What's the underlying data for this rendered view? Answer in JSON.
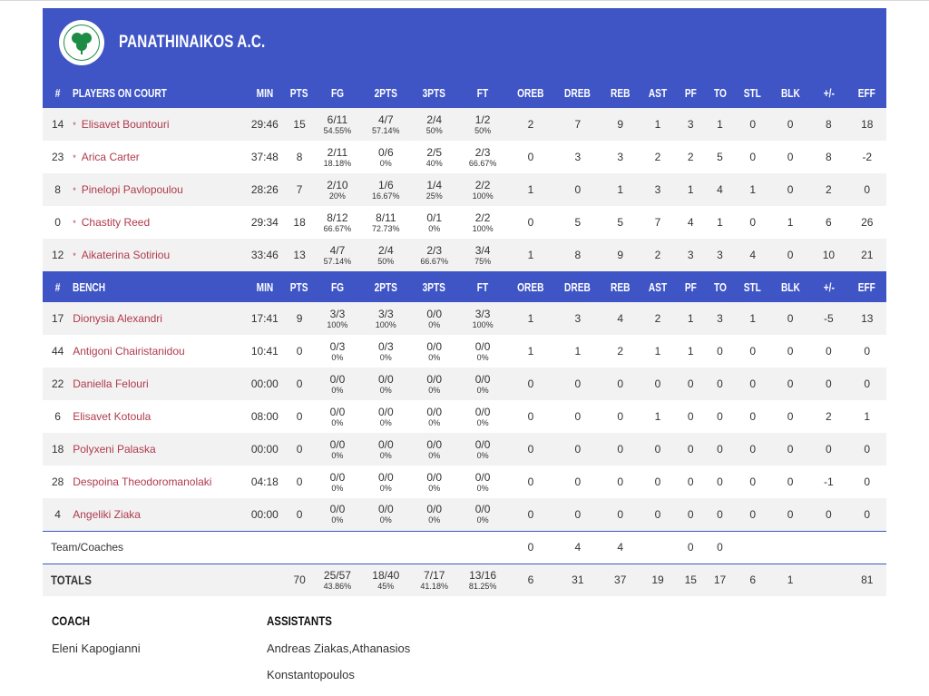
{
  "team": {
    "name": "PANATHINAIKOS A.C.",
    "logo_text": "ΠΑΝΑΘΗΝΑΪΚΟΣ Α.Ο.",
    "logo_year": "1908",
    "accent_color": "#3f55c6",
    "link_color": "#b03a4e"
  },
  "columns": [
    "#",
    "PLAYERS ON COURT",
    "MIN",
    "PTS",
    "FG",
    "2PTS",
    "3PTS",
    "FT",
    "OREB",
    "DREB",
    "REB",
    "AST",
    "PF",
    "TO",
    "STL",
    "BLK",
    "+/-",
    "EFF"
  ],
  "bench_columns": [
    "#",
    "BENCH",
    "MIN",
    "PTS",
    "FG",
    "2PTS",
    "3PTS",
    "FT",
    "OREB",
    "DREB",
    "REB",
    "AST",
    "PF",
    "TO",
    "STL",
    "BLK",
    "+/-",
    "EFF"
  ],
  "starters": [
    {
      "num": "14",
      "name": "Elisavet Bountouri",
      "min": "29:46",
      "pts": "15",
      "fg": "6/11",
      "fg_pct": "54.55%",
      "p2": "4/7",
      "p2_pct": "57.14%",
      "p3": "2/4",
      "p3_pct": "50%",
      "ft": "1/2",
      "ft_pct": "50%",
      "oreb": "2",
      "dreb": "7",
      "reb": "9",
      "ast": "1",
      "pf": "3",
      "to": "1",
      "stl": "0",
      "blk": "0",
      "pm": "8",
      "eff": "18"
    },
    {
      "num": "23",
      "name": "Arica Carter",
      "min": "37:48",
      "pts": "8",
      "fg": "2/11",
      "fg_pct": "18.18%",
      "p2": "0/6",
      "p2_pct": "0%",
      "p3": "2/5",
      "p3_pct": "40%",
      "ft": "2/3",
      "ft_pct": "66.67%",
      "oreb": "0",
      "dreb": "3",
      "reb": "3",
      "ast": "2",
      "pf": "2",
      "to": "5",
      "stl": "0",
      "blk": "0",
      "pm": "8",
      "eff": "-2"
    },
    {
      "num": "8",
      "name": "Pinelopi Pavlopoulou",
      "min": "28:26",
      "pts": "7",
      "fg": "2/10",
      "fg_pct": "20%",
      "p2": "1/6",
      "p2_pct": "16.67%",
      "p3": "1/4",
      "p3_pct": "25%",
      "ft": "2/2",
      "ft_pct": "100%",
      "oreb": "1",
      "dreb": "0",
      "reb": "1",
      "ast": "3",
      "pf": "1",
      "to": "4",
      "stl": "1",
      "blk": "0",
      "pm": "2",
      "eff": "0"
    },
    {
      "num": "0",
      "name": "Chastity Reed",
      "min": "29:34",
      "pts": "18",
      "fg": "8/12",
      "fg_pct": "66.67%",
      "p2": "8/11",
      "p2_pct": "72.73%",
      "p3": "0/1",
      "p3_pct": "0%",
      "ft": "2/2",
      "ft_pct": "100%",
      "oreb": "0",
      "dreb": "5",
      "reb": "5",
      "ast": "7",
      "pf": "4",
      "to": "1",
      "stl": "0",
      "blk": "1",
      "pm": "6",
      "eff": "26"
    },
    {
      "num": "12",
      "name": "Aikaterina Sotiriou",
      "min": "33:46",
      "pts": "13",
      "fg": "4/7",
      "fg_pct": "57.14%",
      "p2": "2/4",
      "p2_pct": "50%",
      "p3": "2/3",
      "p3_pct": "66.67%",
      "ft": "3/4",
      "ft_pct": "75%",
      "oreb": "1",
      "dreb": "8",
      "reb": "9",
      "ast": "2",
      "pf": "3",
      "to": "3",
      "stl": "4",
      "blk": "0",
      "pm": "10",
      "eff": "21"
    }
  ],
  "bench": [
    {
      "num": "17",
      "name": "Dionysia Alexandri",
      "min": "17:41",
      "pts": "9",
      "fg": "3/3",
      "fg_pct": "100%",
      "p2": "3/3",
      "p2_pct": "100%",
      "p3": "0/0",
      "p3_pct": "0%",
      "ft": "3/3",
      "ft_pct": "100%",
      "oreb": "1",
      "dreb": "3",
      "reb": "4",
      "ast": "2",
      "pf": "1",
      "to": "3",
      "stl": "1",
      "blk": "0",
      "pm": "-5",
      "eff": "13"
    },
    {
      "num": "44",
      "name": "Antigoni Chairistanidou",
      "min": "10:41",
      "pts": "0",
      "fg": "0/3",
      "fg_pct": "0%",
      "p2": "0/3",
      "p2_pct": "0%",
      "p3": "0/0",
      "p3_pct": "0%",
      "ft": "0/0",
      "ft_pct": "0%",
      "oreb": "1",
      "dreb": "1",
      "reb": "2",
      "ast": "1",
      "pf": "1",
      "to": "0",
      "stl": "0",
      "blk": "0",
      "pm": "0",
      "eff": "0"
    },
    {
      "num": "22",
      "name": "Daniella Felouri",
      "min": "00:00",
      "pts": "0",
      "fg": "0/0",
      "fg_pct": "0%",
      "p2": "0/0",
      "p2_pct": "0%",
      "p3": "0/0",
      "p3_pct": "0%",
      "ft": "0/0",
      "ft_pct": "0%",
      "oreb": "0",
      "dreb": "0",
      "reb": "0",
      "ast": "0",
      "pf": "0",
      "to": "0",
      "stl": "0",
      "blk": "0",
      "pm": "0",
      "eff": "0"
    },
    {
      "num": "6",
      "name": "Elisavet Kotoula",
      "min": "08:00",
      "pts": "0",
      "fg": "0/0",
      "fg_pct": "0%",
      "p2": "0/0",
      "p2_pct": "0%",
      "p3": "0/0",
      "p3_pct": "0%",
      "ft": "0/0",
      "ft_pct": "0%",
      "oreb": "0",
      "dreb": "0",
      "reb": "0",
      "ast": "1",
      "pf": "0",
      "to": "0",
      "stl": "0",
      "blk": "0",
      "pm": "2",
      "eff": "1"
    },
    {
      "num": "18",
      "name": "Polyxeni Palaska",
      "min": "00:00",
      "pts": "0",
      "fg": "0/0",
      "fg_pct": "0%",
      "p2": "0/0",
      "p2_pct": "0%",
      "p3": "0/0",
      "p3_pct": "0%",
      "ft": "0/0",
      "ft_pct": "0%",
      "oreb": "0",
      "dreb": "0",
      "reb": "0",
      "ast": "0",
      "pf": "0",
      "to": "0",
      "stl": "0",
      "blk": "0",
      "pm": "0",
      "eff": "0"
    },
    {
      "num": "28",
      "name": "Despoina Theodoromanolaki",
      "min": "04:18",
      "pts": "0",
      "fg": "0/0",
      "fg_pct": "0%",
      "p2": "0/0",
      "p2_pct": "0%",
      "p3": "0/0",
      "p3_pct": "0%",
      "ft": "0/0",
      "ft_pct": "0%",
      "oreb": "0",
      "dreb": "0",
      "reb": "0",
      "ast": "0",
      "pf": "0",
      "to": "0",
      "stl": "0",
      "blk": "0",
      "pm": "-1",
      "eff": "0"
    },
    {
      "num": "4",
      "name": "Angeliki Ziaka",
      "min": "00:00",
      "pts": "0",
      "fg": "0/0",
      "fg_pct": "0%",
      "p2": "0/0",
      "p2_pct": "0%",
      "p3": "0/0",
      "p3_pct": "0%",
      "ft": "0/0",
      "ft_pct": "0%",
      "oreb": "0",
      "dreb": "0",
      "reb": "0",
      "ast": "0",
      "pf": "0",
      "to": "0",
      "stl": "0",
      "blk": "0",
      "pm": "0",
      "eff": "0"
    }
  ],
  "team_coaches": {
    "label": "Team/Coaches",
    "oreb": "0",
    "dreb": "4",
    "reb": "4",
    "pf": "0",
    "to": "0"
  },
  "totals": {
    "label": "TOTALS",
    "pts": "70",
    "fg": "25/57",
    "fg_pct": "43.86%",
    "p2": "18/40",
    "p2_pct": "45%",
    "p3": "7/17",
    "p3_pct": "41.18%",
    "ft": "13/16",
    "ft_pct": "81.25%",
    "oreb": "6",
    "dreb": "31",
    "reb": "37",
    "ast": "19",
    "pf": "15",
    "to": "17",
    "stl": "6",
    "blk": "1",
    "eff": "81"
  },
  "staff": {
    "coach_title": "COACH",
    "coach_name": "Eleni Kapogianni",
    "assistants_title": "ASSISTANTS",
    "assistants_names": "Andreas Ziakas,Athanasios Konstantopoulos"
  }
}
